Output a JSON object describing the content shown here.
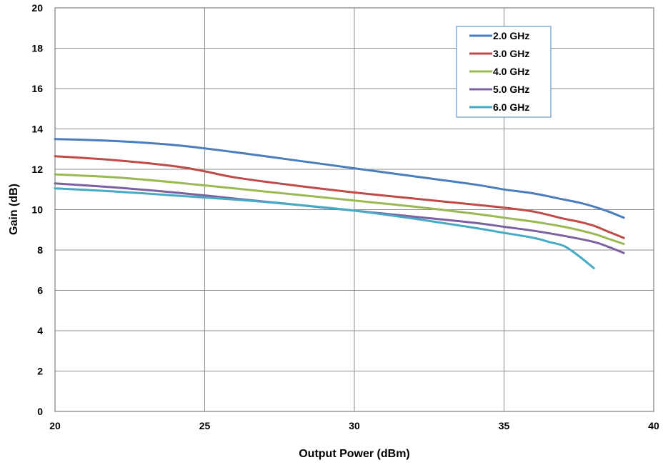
{
  "chart_data": {
    "type": "line",
    "title": "",
    "xlabel": "Output Power (dBm)",
    "ylabel": "Gain (dB)",
    "xlim": [
      20,
      40
    ],
    "ylim": [
      0,
      20
    ],
    "xticks": [
      20,
      25,
      30,
      35,
      40
    ],
    "yticks": [
      0,
      2,
      4,
      6,
      8,
      10,
      12,
      14,
      16,
      18,
      20
    ],
    "grid": true,
    "legend_position": "top-right",
    "series": [
      {
        "name": "2.0 GHz",
        "color": "#4a7ebb",
        "x": [
          20,
          22,
          24,
          26,
          28,
          30,
          32,
          34,
          35,
          36,
          37,
          37.5,
          38,
          38.5,
          39
        ],
        "y": [
          13.5,
          13.4,
          13.2,
          12.85,
          12.45,
          12.05,
          11.65,
          11.25,
          11.0,
          10.8,
          10.5,
          10.35,
          10.15,
          9.9,
          9.6
        ]
      },
      {
        "name": "3.0 GHz",
        "color": "#be4b48",
        "x": [
          20,
          22,
          24,
          25,
          26,
          28,
          30,
          32,
          34,
          35,
          36,
          37,
          37.5,
          38,
          38.5,
          39
        ],
        "y": [
          12.65,
          12.45,
          12.15,
          11.9,
          11.6,
          11.2,
          10.85,
          10.55,
          10.25,
          10.1,
          9.9,
          9.55,
          9.4,
          9.2,
          8.9,
          8.6
        ]
      },
      {
        "name": "4.0 GHz",
        "color": "#98b954",
        "x": [
          20,
          22,
          24,
          26,
          28,
          30,
          32,
          34,
          35,
          36,
          37,
          38,
          38.5,
          39
        ],
        "y": [
          11.75,
          11.6,
          11.35,
          11.05,
          10.75,
          10.45,
          10.15,
          9.8,
          9.6,
          9.4,
          9.15,
          8.8,
          8.55,
          8.3
        ]
      },
      {
        "name": "5.0 GHz",
        "color": "#7d60a0",
        "x": [
          20,
          22,
          24,
          26,
          28,
          30,
          32,
          34,
          35,
          36,
          37,
          38,
          38.5,
          39
        ],
        "y": [
          11.3,
          11.1,
          10.85,
          10.55,
          10.25,
          9.95,
          9.65,
          9.35,
          9.15,
          8.95,
          8.7,
          8.4,
          8.15,
          7.85
        ]
      },
      {
        "name": "6.0 GHz",
        "color": "#46aac5",
        "x": [
          20,
          22,
          24,
          26,
          28,
          30,
          32,
          34,
          35,
          36,
          36.5,
          37,
          37.5,
          38
        ],
        "y": [
          11.05,
          10.9,
          10.7,
          10.5,
          10.25,
          9.95,
          9.55,
          9.1,
          8.85,
          8.6,
          8.4,
          8.2,
          7.7,
          7.1
        ]
      }
    ]
  }
}
